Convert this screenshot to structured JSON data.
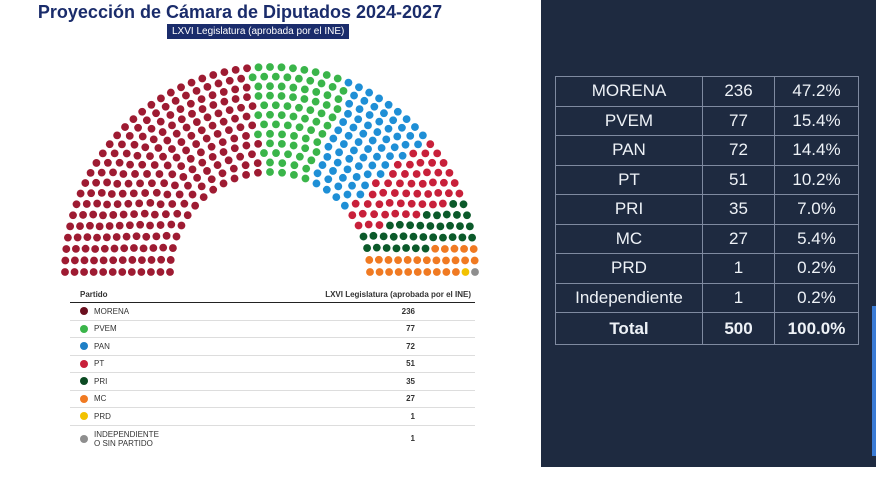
{
  "chart_data": {
    "type": "parliament",
    "title": "Proyección de Cámara de Diputados 2024-2027",
    "subtitle": "LXVI Legislatura (aprobada por el INE)",
    "total_seats": 500,
    "series": [
      {
        "name": "MORENA",
        "seats": 236,
        "color": "#9e1b32"
      },
      {
        "name": "PVEM",
        "seats": 77,
        "color": "#3ab54a"
      },
      {
        "name": "PAN",
        "seats": 72,
        "color": "#1e8fd6"
      },
      {
        "name": "PT",
        "seats": 51,
        "color": "#c8203a"
      },
      {
        "name": "PRI",
        "seats": 35,
        "color": "#0b5a2a"
      },
      {
        "name": "MC",
        "seats": 27,
        "color": "#f07a22"
      },
      {
        "name": "PRD",
        "seats": 1,
        "color": "#f2c200"
      },
      {
        "name": "INDEPENDIENTE O SIN PARTIDO",
        "seats": 1,
        "color": "#8e8e8e"
      }
    ]
  },
  "legend": {
    "header_party": "Partido",
    "header_seats": "LXVI Legislatura (aprobada por el INE)",
    "rows": [
      {
        "name": "MORENA",
        "seats": "236",
        "color": "#6b0f1f"
      },
      {
        "name": "PVEM",
        "seats": "77",
        "color": "#3ab54a"
      },
      {
        "name": "PAN",
        "seats": "72",
        "color": "#1e7fc6"
      },
      {
        "name": "PT",
        "seats": "51",
        "color": "#c8203a"
      },
      {
        "name": "PRI",
        "seats": "35",
        "color": "#0b4a22"
      },
      {
        "name": "MC",
        "seats": "27",
        "color": "#f07a22"
      },
      {
        "name": "PRD",
        "seats": "1",
        "color": "#f2c200"
      },
      {
        "name": "INDEPENDIENTE\nO SIN PARTIDO",
        "seats": "1",
        "color": "#8e8e8e"
      }
    ]
  },
  "summary": {
    "rows": [
      {
        "party": "MORENA",
        "seats": "236",
        "pct": "47.2%"
      },
      {
        "party": "PVEM",
        "seats": "77",
        "pct": "15.4%"
      },
      {
        "party": "PAN",
        "seats": "72",
        "pct": "14.4%"
      },
      {
        "party": "PT",
        "seats": "51",
        "pct": "10.2%"
      },
      {
        "party": "PRI",
        "seats": "35",
        "pct": "7.0%"
      },
      {
        "party": "MC",
        "seats": "27",
        "pct": "5.4%"
      },
      {
        "party": "PRD",
        "seats": "1",
        "pct": "0.2%"
      },
      {
        "party": "Independiente",
        "seats": "1",
        "pct": "0.2%"
      }
    ],
    "total": {
      "party": "Total",
      "seats": "500",
      "pct": "100.0%"
    }
  }
}
